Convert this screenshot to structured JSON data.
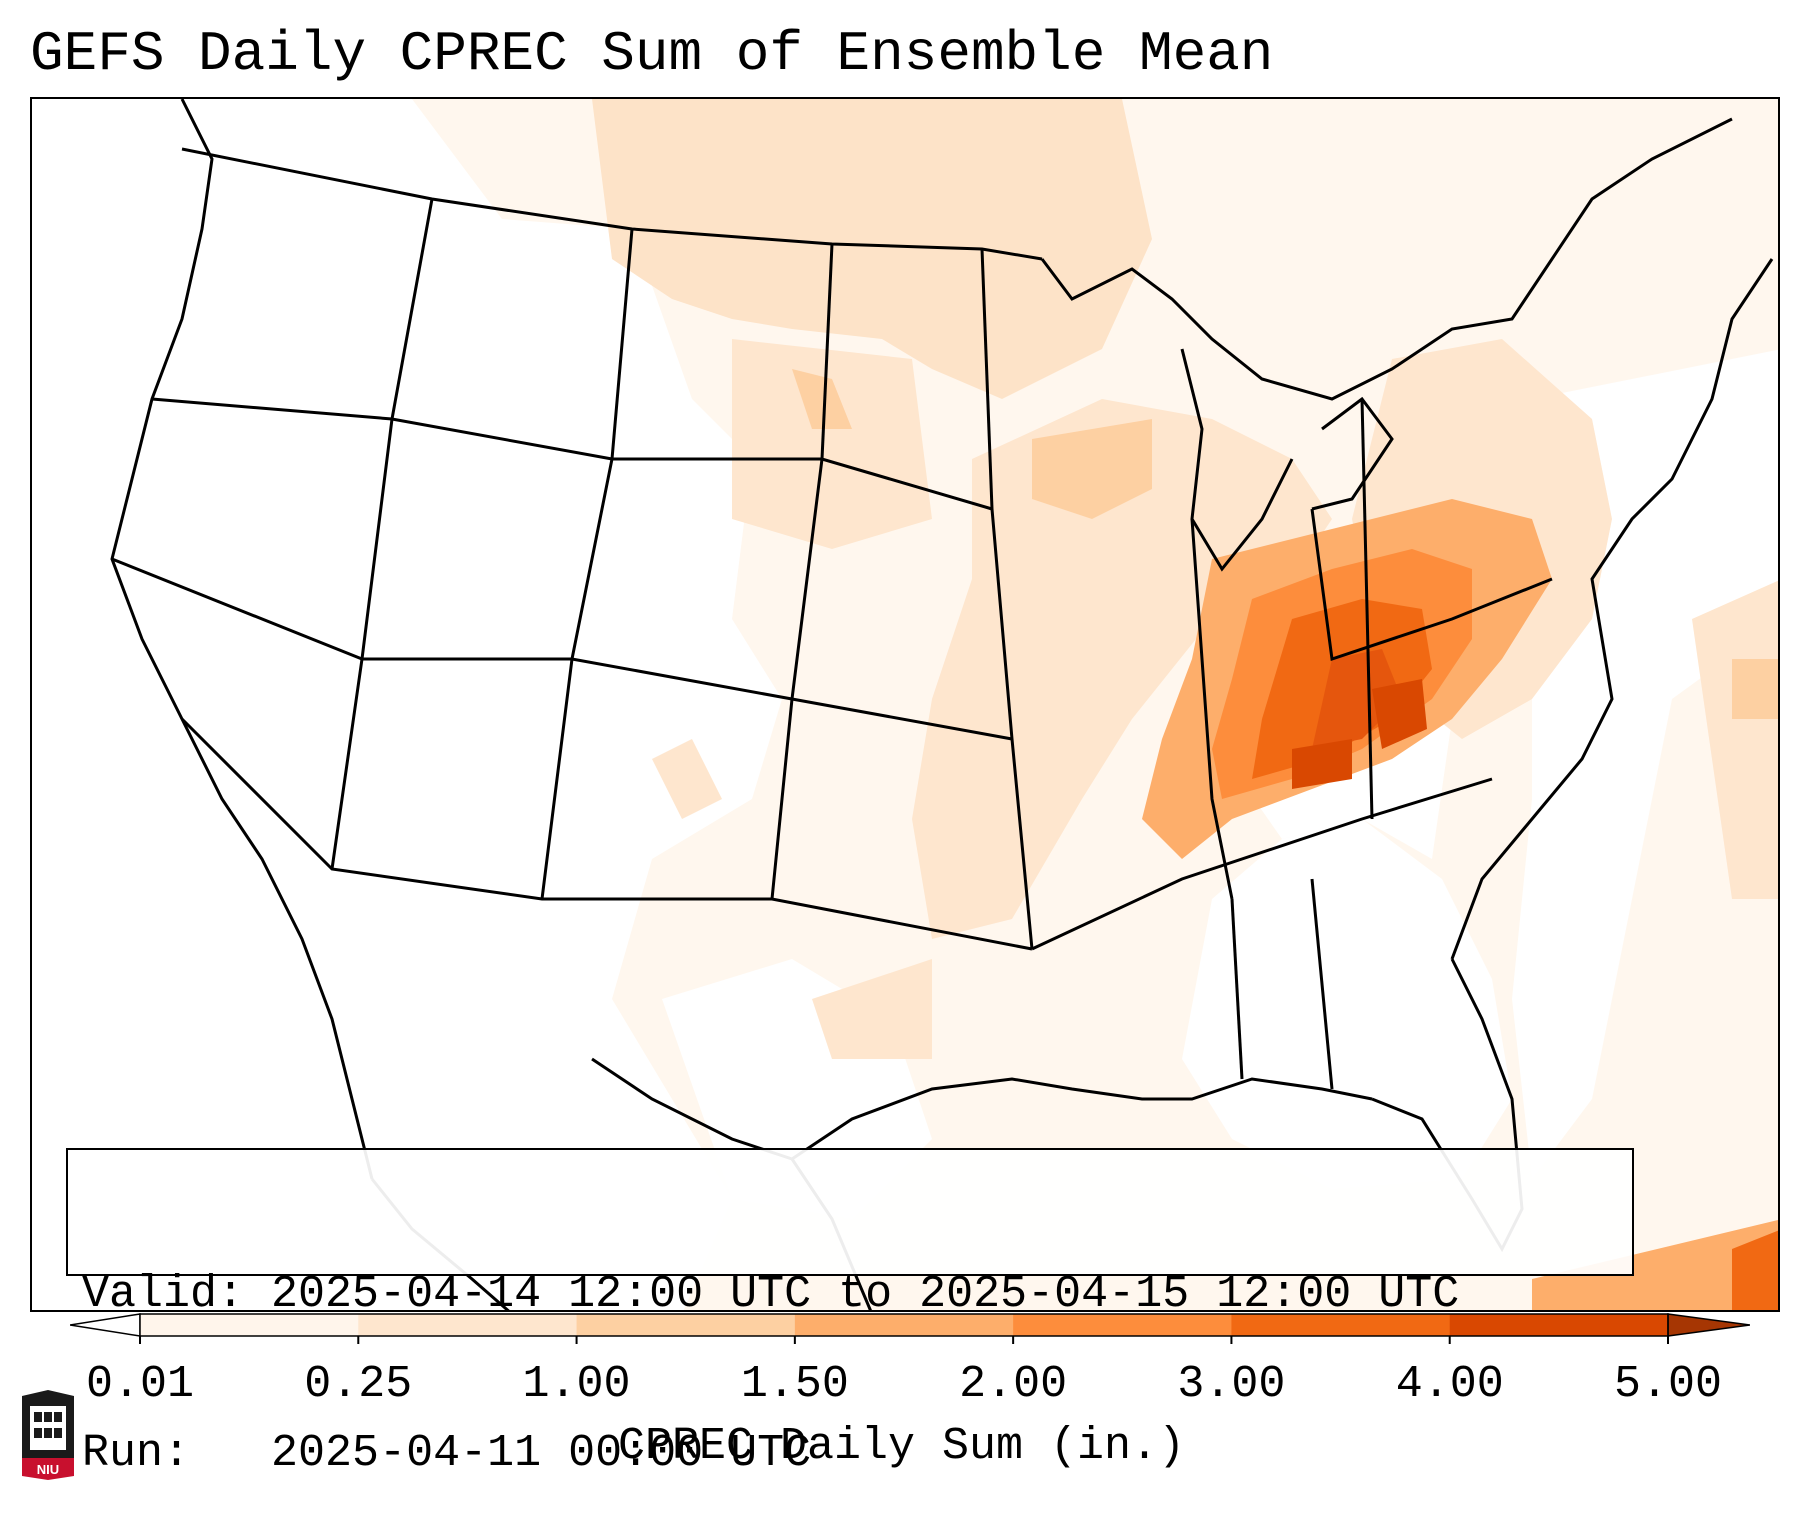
{
  "title": "GEFS Daily CPREC Sum of Ensemble Mean",
  "info_box": {
    "valid_label": "Valid:",
    "valid_value": "2025-04-14 12:00 UTC to 2025-04-15 12:00 UTC",
    "run_label": "Run:",
    "run_value": "2025-04-11 00:00 UTC"
  },
  "colorbar": {
    "title": "CPREC Daily Sum (in.)",
    "ticks": [
      "0.01",
      "0.25",
      "1.00",
      "1.50",
      "2.00",
      "3.00",
      "4.00",
      "5.00"
    ],
    "colors": [
      "#fff5eb",
      "#fee6ce",
      "#fdd0a2",
      "#fdae6b",
      "#fd8d3c",
      "#f16913",
      "#d94801",
      "#a63603"
    ],
    "extend": "both"
  },
  "map": {
    "region": "Continental United States",
    "max_precip_area": "Ohio Valley / Kentucky / West Virginia"
  },
  "logo": {
    "text": "NIU"
  }
}
